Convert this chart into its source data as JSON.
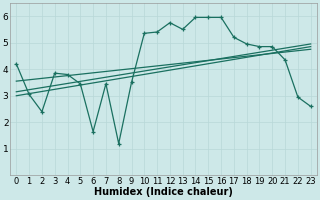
{
  "xlabel": "Humidex (Indice chaleur)",
  "xlim": [
    -0.5,
    23.5
  ],
  "ylim": [
    0,
    6.5
  ],
  "bg_color": "#cde8e8",
  "line_color": "#1a7060",
  "grid_color": "#b8d8d8",
  "line1_x": [
    0,
    1,
    2,
    3,
    4,
    5,
    6,
    7,
    8,
    9,
    10,
    11,
    12,
    13,
    14,
    15,
    16,
    17,
    18,
    19,
    20,
    21,
    22,
    23
  ],
  "line1_y": [
    4.2,
    3.05,
    2.4,
    3.85,
    3.8,
    3.45,
    1.65,
    3.45,
    1.2,
    3.5,
    5.35,
    5.4,
    5.75,
    5.5,
    5.95,
    5.95,
    5.95,
    5.2,
    4.95,
    4.85,
    4.85,
    4.35,
    2.95,
    2.6
  ],
  "line2_x": [
    0,
    23
  ],
  "line2_y": [
    3.0,
    4.85
  ],
  "line3_x": [
    0,
    23
  ],
  "line3_y": [
    3.15,
    4.95
  ],
  "line4_x": [
    0,
    23
  ],
  "line4_y": [
    3.55,
    4.75
  ],
  "xtick_labels": [
    "0",
    "1",
    "2",
    "3",
    "4",
    "5",
    "6",
    "7",
    "8",
    "9",
    "10",
    "11",
    "12",
    "13",
    "14",
    "15",
    "16",
    "17",
    "18",
    "19",
    "20",
    "21",
    "22",
    "23"
  ],
  "ytick_labels": [
    "1",
    "2",
    "3",
    "4",
    "5",
    "6"
  ],
  "font_size": 6.5
}
